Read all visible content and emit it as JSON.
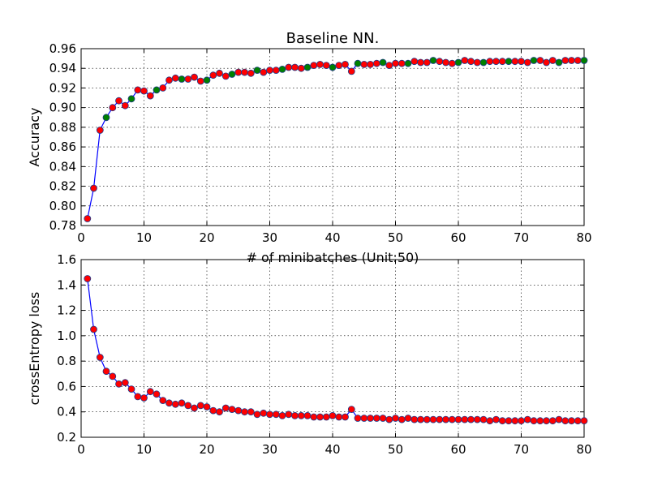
{
  "figure_title": "Baseline NN.",
  "colors": {
    "line": "#0000ff",
    "marker_default": "#ff0000",
    "marker_highlight": "#008000",
    "marker_edge": "#1f3a8a"
  },
  "chart_data": [
    {
      "type": "line",
      "title": "Baseline NN.",
      "xlabel": "# of minibatches (Unit:50)",
      "ylabel": "Accuracy",
      "xlim": [
        0,
        80
      ],
      "ylim": [
        0.78,
        0.96
      ],
      "xticks": [
        "0",
        "10",
        "20",
        "30",
        "40",
        "50",
        "60",
        "70",
        "80"
      ],
      "yticks": [
        "0.78",
        "0.80",
        "0.82",
        "0.84",
        "0.86",
        "0.88",
        "0.90",
        "0.92",
        "0.94",
        "0.96"
      ],
      "grid": true,
      "x": [
        1,
        2,
        3,
        4,
        5,
        6,
        7,
        8,
        9,
        10,
        11,
        12,
        13,
        14,
        15,
        16,
        17,
        18,
        19,
        20,
        21,
        22,
        23,
        24,
        25,
        26,
        27,
        28,
        29,
        30,
        31,
        32,
        33,
        34,
        35,
        36,
        37,
        38,
        39,
        40,
        41,
        42,
        43,
        44,
        45,
        46,
        47,
        48,
        49,
        50,
        51,
        52,
        53,
        54,
        55,
        56,
        57,
        58,
        59,
        60,
        61,
        62,
        63,
        64,
        65,
        66,
        67,
        68,
        69,
        70,
        71,
        72,
        73,
        74,
        75,
        76,
        77,
        78,
        79,
        80
      ],
      "y": [
        0.787,
        0.818,
        0.877,
        0.89,
        0.9,
        0.907,
        0.902,
        0.909,
        0.918,
        0.917,
        0.912,
        0.918,
        0.92,
        0.928,
        0.93,
        0.929,
        0.929,
        0.931,
        0.927,
        0.928,
        0.933,
        0.935,
        0.932,
        0.934,
        0.936,
        0.936,
        0.935,
        0.938,
        0.936,
        0.938,
        0.938,
        0.939,
        0.941,
        0.941,
        0.94,
        0.941,
        0.943,
        0.944,
        0.943,
        0.941,
        0.943,
        0.944,
        0.937,
        0.945,
        0.944,
        0.944,
        0.945,
        0.946,
        0.943,
        0.945,
        0.945,
        0.945,
        0.947,
        0.946,
        0.946,
        0.948,
        0.947,
        0.946,
        0.945,
        0.946,
        0.948,
        0.947,
        0.946,
        0.946,
        0.947,
        0.947,
        0.947,
        0.947,
        0.947,
        0.947,
        0.946,
        0.948,
        0.948,
        0.946,
        0.948,
        0.946,
        0.948,
        0.948,
        0.948,
        0.948
      ],
      "highlight_x": [
        4,
        8,
        12,
        16,
        20,
        24,
        28,
        32,
        36,
        40,
        44,
        48,
        52,
        56,
        60,
        64,
        68,
        72,
        76,
        80
      ]
    },
    {
      "type": "line",
      "title": "",
      "xlabel": "",
      "ylabel": "crossEntropy loss",
      "xlim": [
        0,
        80
      ],
      "ylim": [
        0.2,
        1.6
      ],
      "xticks": [
        "0",
        "10",
        "20",
        "30",
        "40",
        "50",
        "60",
        "70",
        "80"
      ],
      "yticks": [
        "0.2",
        "0.4",
        "0.6",
        "0.8",
        "1.0",
        "1.2",
        "1.4",
        "1.6"
      ],
      "grid": true,
      "x": [
        1,
        2,
        3,
        4,
        5,
        6,
        7,
        8,
        9,
        10,
        11,
        12,
        13,
        14,
        15,
        16,
        17,
        18,
        19,
        20,
        21,
        22,
        23,
        24,
        25,
        26,
        27,
        28,
        29,
        30,
        31,
        32,
        33,
        34,
        35,
        36,
        37,
        38,
        39,
        40,
        41,
        42,
        43,
        44,
        45,
        46,
        47,
        48,
        49,
        50,
        51,
        52,
        53,
        54,
        55,
        56,
        57,
        58,
        59,
        60,
        61,
        62,
        63,
        64,
        65,
        66,
        67,
        68,
        69,
        70,
        71,
        72,
        73,
        74,
        75,
        76,
        77,
        78,
        79,
        80
      ],
      "y": [
        1.45,
        1.05,
        0.83,
        0.72,
        0.68,
        0.62,
        0.63,
        0.58,
        0.52,
        0.51,
        0.56,
        0.54,
        0.49,
        0.47,
        0.46,
        0.47,
        0.45,
        0.43,
        0.45,
        0.44,
        0.41,
        0.4,
        0.43,
        0.42,
        0.41,
        0.4,
        0.4,
        0.38,
        0.39,
        0.38,
        0.38,
        0.37,
        0.38,
        0.37,
        0.37,
        0.37,
        0.36,
        0.36,
        0.36,
        0.37,
        0.36,
        0.36,
        0.42,
        0.35,
        0.35,
        0.35,
        0.35,
        0.35,
        0.34,
        0.35,
        0.34,
        0.35,
        0.34,
        0.34,
        0.34,
        0.34,
        0.34,
        0.34,
        0.34,
        0.34,
        0.34,
        0.34,
        0.34,
        0.34,
        0.33,
        0.34,
        0.33,
        0.33,
        0.33,
        0.33,
        0.34,
        0.33,
        0.33,
        0.33,
        0.33,
        0.34,
        0.33,
        0.33,
        0.33,
        0.33
      ],
      "highlight_x": []
    }
  ]
}
